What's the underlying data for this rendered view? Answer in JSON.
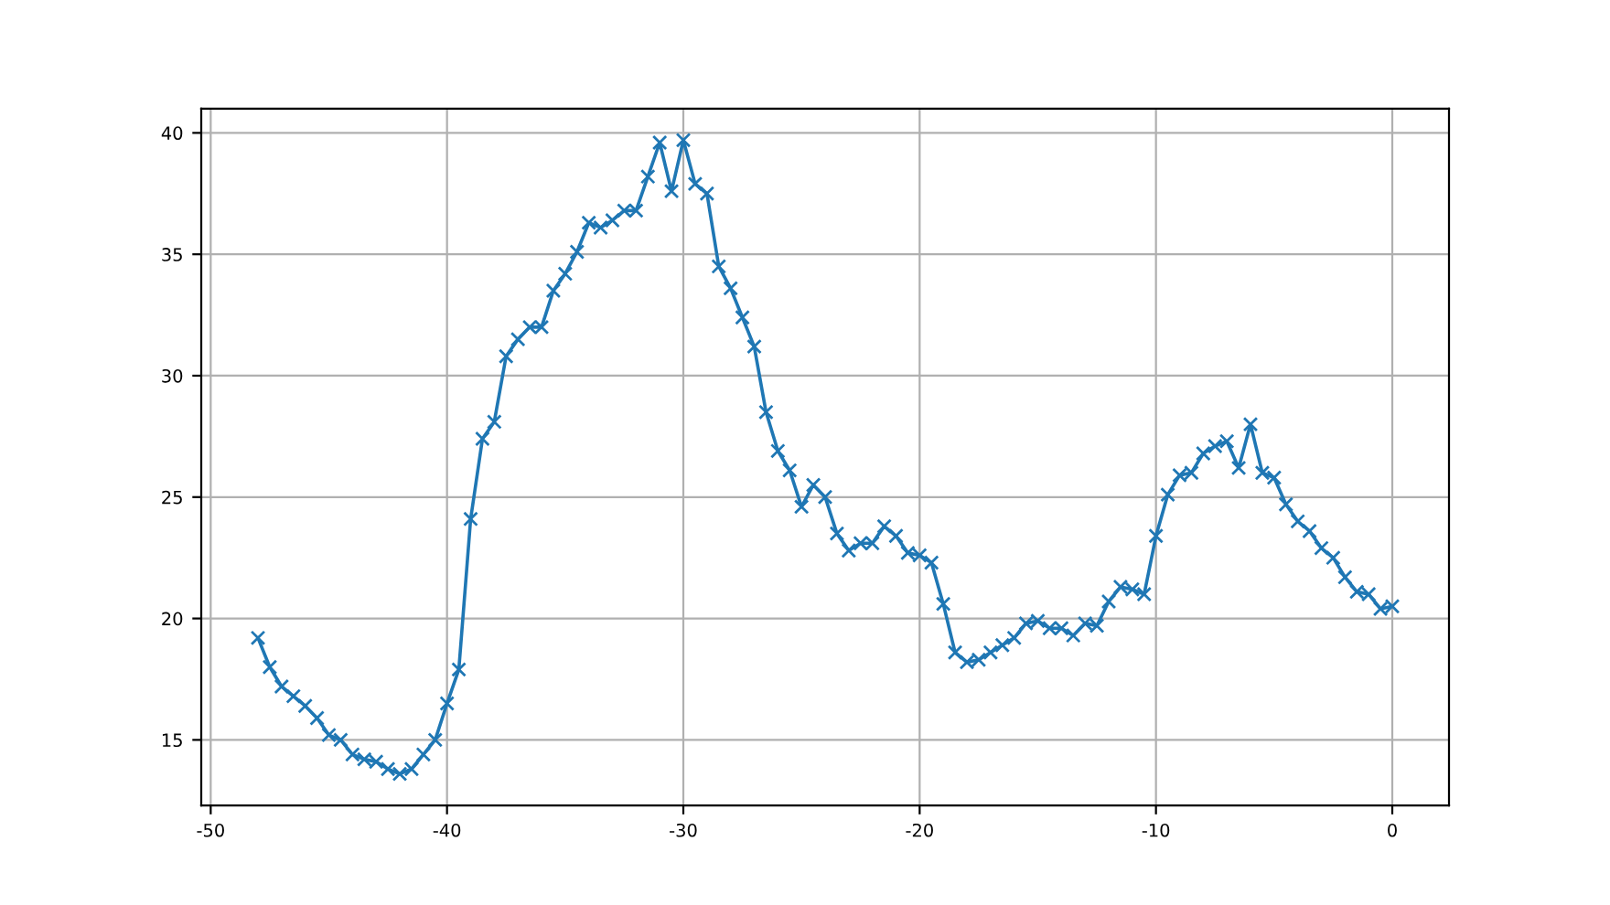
{
  "chart_data": {
    "type": "line",
    "marker": "cross",
    "grid": true,
    "xlim": [
      -50.4,
      2.4
    ],
    "ylim": [
      12.3,
      41.0
    ],
    "xticks": [
      -50,
      -40,
      -30,
      -20,
      -10,
      0
    ],
    "yticks": [
      15,
      20,
      25,
      30,
      35,
      40
    ],
    "x": [
      -48,
      -47.5,
      -47,
      -46.5,
      -46,
      -45.5,
      -45,
      -44.5,
      -44,
      -43.5,
      -43,
      -42.5,
      -42,
      -41.5,
      -41,
      -40.5,
      -40,
      -39.5,
      -39,
      -38.5,
      -38,
      -37.5,
      -37,
      -36.5,
      -36,
      -35.5,
      -35,
      -34.5,
      -34,
      -33.5,
      -33,
      -32.5,
      -32,
      -31.5,
      -31,
      -30.5,
      -30,
      -29.5,
      -29,
      -28.5,
      -28,
      -27.5,
      -27,
      -26.5,
      -26,
      -25.5,
      -25,
      -24.5,
      -24,
      -23.5,
      -23,
      -22.5,
      -22,
      -21.5,
      -21,
      -20.5,
      -20,
      -19.5,
      -19,
      -18.5,
      -18,
      -17.5,
      -17,
      -16.5,
      -16,
      -15.5,
      -15,
      -14.5,
      -14,
      -13.5,
      -13,
      -12.5,
      -12,
      -11.5,
      -11,
      -10.5,
      -10,
      -9.5,
      -9,
      -8.5,
      -8,
      -7.5,
      -7,
      -6.5,
      -6,
      -5.5,
      -5,
      -4.5,
      -4,
      -3.5,
      -3,
      -2.5,
      -2,
      -1.5,
      -1,
      -0.5,
      0
    ],
    "series": [
      {
        "color": "#1f77b4",
        "values": [
          19.2,
          18.0,
          17.2,
          16.8,
          16.4,
          15.9,
          15.2,
          15.0,
          14.4,
          14.2,
          14.1,
          13.8,
          13.6,
          13.8,
          14.4,
          15.0,
          16.5,
          17.9,
          24.1,
          27.4,
          28.1,
          30.8,
          31.5,
          32.0,
          32.0,
          33.5,
          34.2,
          35.1,
          36.3,
          36.1,
          36.4,
          36.8,
          36.8,
          38.2,
          39.6,
          37.6,
          39.7,
          37.9,
          37.5,
          34.5,
          33.6,
          32.4,
          31.2,
          28.5,
          26.9,
          26.1,
          24.6,
          25.5,
          25.0,
          23.5,
          22.8,
          23.1,
          23.1,
          23.8,
          23.4,
          22.7,
          22.6,
          22.3,
          20.6,
          18.6,
          18.2,
          18.3,
          18.6,
          18.9,
          19.2,
          19.8,
          19.9,
          19.6,
          19.6,
          19.3,
          19.8,
          19.7,
          20.7,
          21.3,
          21.2,
          21.0,
          23.4,
          25.1,
          25.9,
          26.0,
          26.8,
          27.1,
          27.3,
          26.2,
          28.0,
          26.0,
          25.8,
          24.7,
          24.0,
          23.6,
          22.9,
          22.5,
          21.7,
          21.1,
          21.0,
          20.4,
          20.5
        ]
      }
    ]
  }
}
